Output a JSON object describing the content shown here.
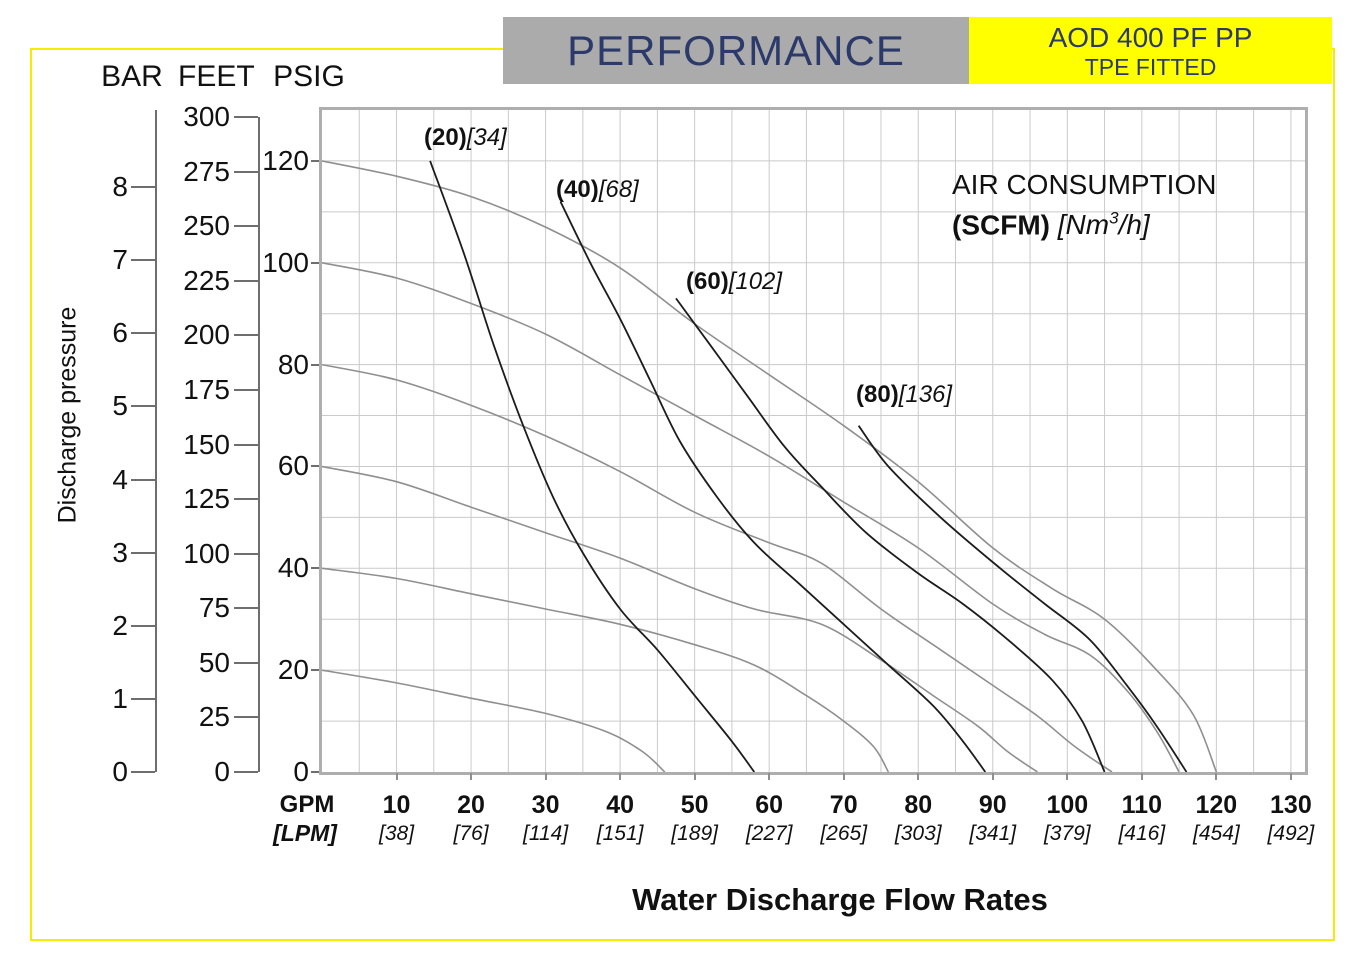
{
  "header": {
    "performance": "PERFORMANCE",
    "model": "AOD 400 PF PP",
    "fitted": "TPE FITTED"
  },
  "scale_headers": {
    "bar": "BAR",
    "feet": "FEET",
    "psig": "PSIG"
  },
  "y_axis_title": "Discharge pressure",
  "x_axis_title": "Water Discharge Flow Rates",
  "x_axis_units": {
    "primary": "GPM",
    "secondary": "[LPM]"
  },
  "annotations": {
    "air_title": "AIR CONSUMPTION",
    "air_scfm": "(SCFM)",
    "air_unit_prefix": " [Nm",
    "air_unit_sup": "3",
    "air_unit_suffix": "/h]"
  },
  "colors": {
    "navy": "#2b3a6b",
    "header_gray": "#ababab",
    "header_yellow": "#ffff00",
    "frame_yellow": "#f6ec00",
    "grid": "#cacaca",
    "chart_border": "#aeaeae",
    "performance_curve": "#8f8f8f",
    "air_curve": "#1c1c1c"
  },
  "axes": {
    "bar_ticks": [
      8,
      7,
      6,
      5,
      4,
      3,
      2,
      1,
      0
    ],
    "feet_ticks": [
      300,
      275,
      250,
      225,
      200,
      175,
      150,
      125,
      100,
      75,
      50,
      25,
      0
    ],
    "psig_ticks": [
      120,
      100,
      80,
      60,
      40,
      20,
      0
    ],
    "gpm_ticks": [
      10,
      20,
      30,
      40,
      50,
      60,
      70,
      80,
      90,
      100,
      110,
      120,
      130
    ],
    "lpm_ticks": [
      "[38]",
      "[76]",
      "[114]",
      "[151]",
      "[189]",
      "[227]",
      "[265]",
      "[303]",
      "[341]",
      "[379]",
      "[416]",
      "[454]",
      "[492]"
    ]
  },
  "chart_data": {
    "type": "line",
    "x_unit": "GPM",
    "y_unit": "PSIG",
    "x_range": [
      0,
      130
    ],
    "y_range": [
      0,
      130
    ],
    "grid": {
      "x_step": 5,
      "y_step": 10
    },
    "performance_curves": [
      {
        "name": "120 PSIG curve",
        "points": [
          [
            0,
            120
          ],
          [
            10,
            117
          ],
          [
            20,
            113
          ],
          [
            30,
            107
          ],
          [
            40,
            99
          ],
          [
            50,
            88
          ],
          [
            60,
            78
          ],
          [
            70,
            68
          ],
          [
            80,
            57
          ],
          [
            90,
            44
          ],
          [
            98,
            36
          ],
          [
            105,
            30
          ],
          [
            112,
            20
          ],
          [
            117,
            11
          ],
          [
            120,
            0
          ]
        ]
      },
      {
        "name": "100 PSIG curve",
        "points": [
          [
            0,
            100
          ],
          [
            10,
            97
          ],
          [
            20,
            92
          ],
          [
            30,
            86
          ],
          [
            40,
            78
          ],
          [
            50,
            70
          ],
          [
            60,
            62
          ],
          [
            70,
            53
          ],
          [
            80,
            44
          ],
          [
            90,
            33
          ],
          [
            97,
            27
          ],
          [
            103,
            23
          ],
          [
            108,
            16
          ],
          [
            112,
            8
          ],
          [
            115,
            0
          ]
        ]
      },
      {
        "name": "80 PSIG curve",
        "points": [
          [
            0,
            80
          ],
          [
            10,
            77
          ],
          [
            20,
            72
          ],
          [
            30,
            66
          ],
          [
            40,
            59
          ],
          [
            50,
            51
          ],
          [
            60,
            45
          ],
          [
            67,
            41
          ],
          [
            75,
            32
          ],
          [
            83,
            24
          ],
          [
            90,
            17
          ],
          [
            96,
            11
          ],
          [
            101,
            5
          ],
          [
            106,
            0
          ]
        ]
      },
      {
        "name": "60 PSIG curve",
        "points": [
          [
            0,
            60
          ],
          [
            10,
            57
          ],
          [
            20,
            52
          ],
          [
            30,
            47
          ],
          [
            40,
            42
          ],
          [
            50,
            36
          ],
          [
            58,
            32
          ],
          [
            67,
            29
          ],
          [
            75,
            22
          ],
          [
            82,
            15
          ],
          [
            88,
            9
          ],
          [
            92,
            4
          ],
          [
            96,
            0
          ]
        ]
      },
      {
        "name": "40 PSIG curve",
        "points": [
          [
            0,
            40
          ],
          [
            10,
            38
          ],
          [
            20,
            35
          ],
          [
            30,
            32
          ],
          [
            40,
            29
          ],
          [
            50,
            25
          ],
          [
            58,
            21
          ],
          [
            65,
            15
          ],
          [
            70,
            10
          ],
          [
            74,
            5
          ],
          [
            76,
            0
          ]
        ]
      },
      {
        "name": "20 PSIG curve",
        "points": [
          [
            0,
            20
          ],
          [
            10,
            17.5
          ],
          [
            20,
            14.5
          ],
          [
            30,
            11.5
          ],
          [
            38,
            8
          ],
          [
            43,
            4
          ],
          [
            46,
            0
          ]
        ]
      }
    ],
    "air_curves": [
      {
        "label_bold": "(20)",
        "label_italic": "[34]",
        "points": [
          [
            14.5,
            120
          ],
          [
            19,
            102
          ],
          [
            23,
            84
          ],
          [
            27,
            68
          ],
          [
            31,
            54
          ],
          [
            35,
            43
          ],
          [
            40,
            32
          ],
          [
            45,
            24
          ],
          [
            50,
            15
          ],
          [
            55,
            6
          ],
          [
            58,
            0
          ]
        ]
      },
      {
        "label_bold": "(40)",
        "label_italic": "[68]",
        "points": [
          [
            32,
            112
          ],
          [
            36,
            100
          ],
          [
            40,
            89
          ],
          [
            44,
            77
          ],
          [
            48,
            65
          ],
          [
            53,
            54
          ],
          [
            58,
            45
          ],
          [
            64,
            37
          ],
          [
            70,
            29
          ],
          [
            76,
            21
          ],
          [
            82,
            13
          ],
          [
            86,
            6
          ],
          [
            89,
            0
          ]
        ]
      },
      {
        "label_bold": "(60)",
        "label_italic": "[102]",
        "points": [
          [
            47.5,
            93
          ],
          [
            52,
            84
          ],
          [
            57,
            74
          ],
          [
            62,
            64
          ],
          [
            67,
            56
          ],
          [
            73,
            47
          ],
          [
            80,
            39
          ],
          [
            86,
            33
          ],
          [
            92,
            26
          ],
          [
            98,
            18
          ],
          [
            102,
            10
          ],
          [
            105,
            0
          ]
        ]
      },
      {
        "label_bold": "(80)",
        "label_italic": "[136]",
        "points": [
          [
            72,
            68
          ],
          [
            76,
            60
          ],
          [
            83,
            50
          ],
          [
            91,
            40
          ],
          [
            97,
            33
          ],
          [
            103,
            26
          ],
          [
            108,
            17
          ],
          [
            112,
            9
          ],
          [
            116,
            0
          ]
        ]
      }
    ]
  }
}
